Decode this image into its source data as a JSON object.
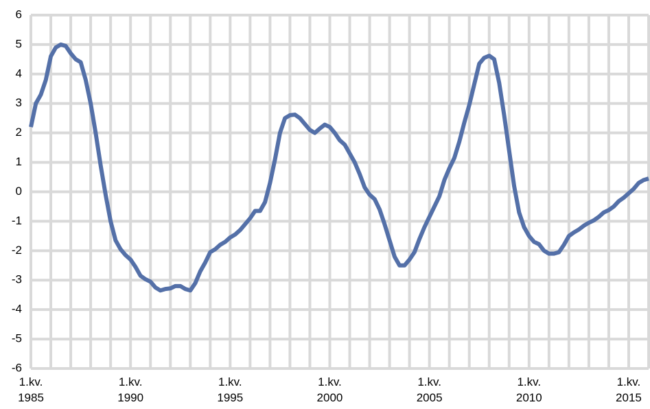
{
  "chart_data": {
    "type": "line",
    "categories": [
      "1.kv.\n1985",
      null,
      null,
      null,
      null,
      null,
      null,
      null,
      null,
      null,
      null,
      null,
      null,
      null,
      null,
      null,
      null,
      null,
      null,
      null,
      "1.kv.\n1990",
      null,
      null,
      null,
      null,
      null,
      null,
      null,
      null,
      null,
      null,
      null,
      null,
      null,
      null,
      null,
      null,
      null,
      null,
      null,
      "1.kv.\n1995",
      null,
      null,
      null,
      null,
      null,
      null,
      null,
      null,
      null,
      null,
      null,
      null,
      null,
      null,
      null,
      null,
      null,
      null,
      null,
      "1.kv.\n2000",
      null,
      null,
      null,
      null,
      null,
      null,
      null,
      null,
      null,
      null,
      null,
      null,
      null,
      null,
      null,
      null,
      null,
      null,
      null,
      "1.kv.\n2005",
      null,
      null,
      null,
      null,
      null,
      null,
      null,
      null,
      null,
      null,
      null,
      null,
      null,
      null,
      null,
      null,
      null,
      null,
      null,
      "1.kv.\n2010",
      null,
      null,
      null,
      null,
      null,
      null,
      null,
      null,
      null,
      null,
      null,
      null,
      null,
      null,
      null,
      null,
      null,
      null,
      null,
      "1.kv.\n2015",
      null,
      null,
      null,
      null
    ],
    "values": [
      2.2,
      3.0,
      3.3,
      3.8,
      4.6,
      4.9,
      5.0,
      4.95,
      4.7,
      4.5,
      4.4,
      3.8,
      3.0,
      2.0,
      0.9,
      -0.1,
      -1.0,
      -1.65,
      -1.95,
      -2.15,
      -2.3,
      -2.55,
      -2.85,
      -2.97,
      -3.05,
      -3.25,
      -3.35,
      -3.3,
      -3.28,
      -3.2,
      -3.2,
      -3.3,
      -3.35,
      -3.1,
      -2.7,
      -2.4,
      -2.05,
      -1.95,
      -1.8,
      -1.7,
      -1.55,
      -1.45,
      -1.3,
      -1.1,
      -0.9,
      -0.65,
      -0.65,
      -0.35,
      0.3,
      1.1,
      2.0,
      2.5,
      2.6,
      2.62,
      2.5,
      2.3,
      2.1,
      2.0,
      2.15,
      2.28,
      2.2,
      2.0,
      1.75,
      1.6,
      1.3,
      1.0,
      0.6,
      0.15,
      -0.1,
      -0.25,
      -0.6,
      -1.1,
      -1.65,
      -2.2,
      -2.5,
      -2.5,
      -2.3,
      -2.05,
      -1.6,
      -1.2,
      -0.85,
      -0.5,
      -0.15,
      0.4,
      0.8,
      1.15,
      1.7,
      2.35,
      2.95,
      3.65,
      4.35,
      4.55,
      4.62,
      4.5,
      3.7,
      2.6,
      1.4,
      0.2,
      -0.7,
      -1.2,
      -1.5,
      -1.7,
      -1.78,
      -2.0,
      -2.1,
      -2.1,
      -2.05,
      -1.8,
      -1.5,
      -1.38,
      -1.28,
      -1.15,
      -1.05,
      -0.97,
      -0.85,
      -0.7,
      -0.62,
      -0.5,
      -0.32,
      -0.2,
      -0.05,
      0.1,
      0.3,
      0.4,
      0.45
    ],
    "color": "#5470a8",
    "ylim": [
      -6,
      6
    ],
    "yticks": [
      -6,
      -5,
      -4,
      -3,
      -2,
      -1,
      0,
      1,
      2,
      3,
      4,
      5,
      6
    ],
    "grid": true
  }
}
